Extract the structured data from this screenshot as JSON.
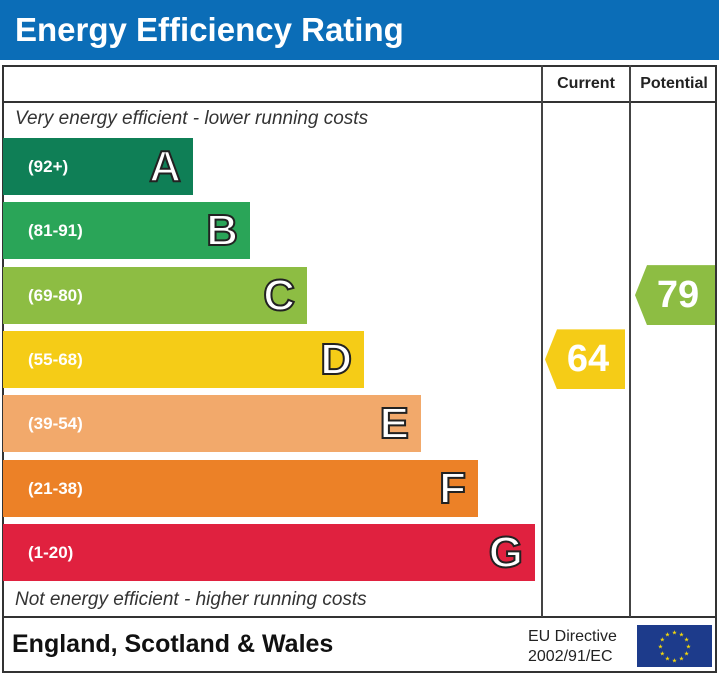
{
  "title": "Energy Efficiency Rating",
  "columns": {
    "current": "Current",
    "potential": "Potential"
  },
  "top_note": "Very energy efficient - lower running costs",
  "bottom_note": "Not energy efficient - higher running costs",
  "footer": {
    "region": "England, Scotland & Wales",
    "directive_line1": "EU Directive",
    "directive_line2": "2002/91/EC"
  },
  "chart_data": {
    "type": "bar",
    "bands": [
      {
        "letter": "A",
        "range": "(92+)",
        "color": "#0f7f56"
      },
      {
        "letter": "B",
        "range": "(81-91)",
        "color": "#2aa558"
      },
      {
        "letter": "C",
        "range": "(69-80)",
        "color": "#8dbd43"
      },
      {
        "letter": "D",
        "range": "(55-68)",
        "color": "#f5cc17"
      },
      {
        "letter": "E",
        "range": "(39-54)",
        "color": "#f2a96b"
      },
      {
        "letter": "F",
        "range": "(21-38)",
        "color": "#ec8127"
      },
      {
        "letter": "G",
        "range": "(1-20)",
        "color": "#e0213f"
      }
    ],
    "current": {
      "value": "64",
      "band": "D",
      "color": "#f5cc17"
    },
    "potential": {
      "value": "79",
      "band": "C",
      "color": "#8dbd43"
    }
  }
}
